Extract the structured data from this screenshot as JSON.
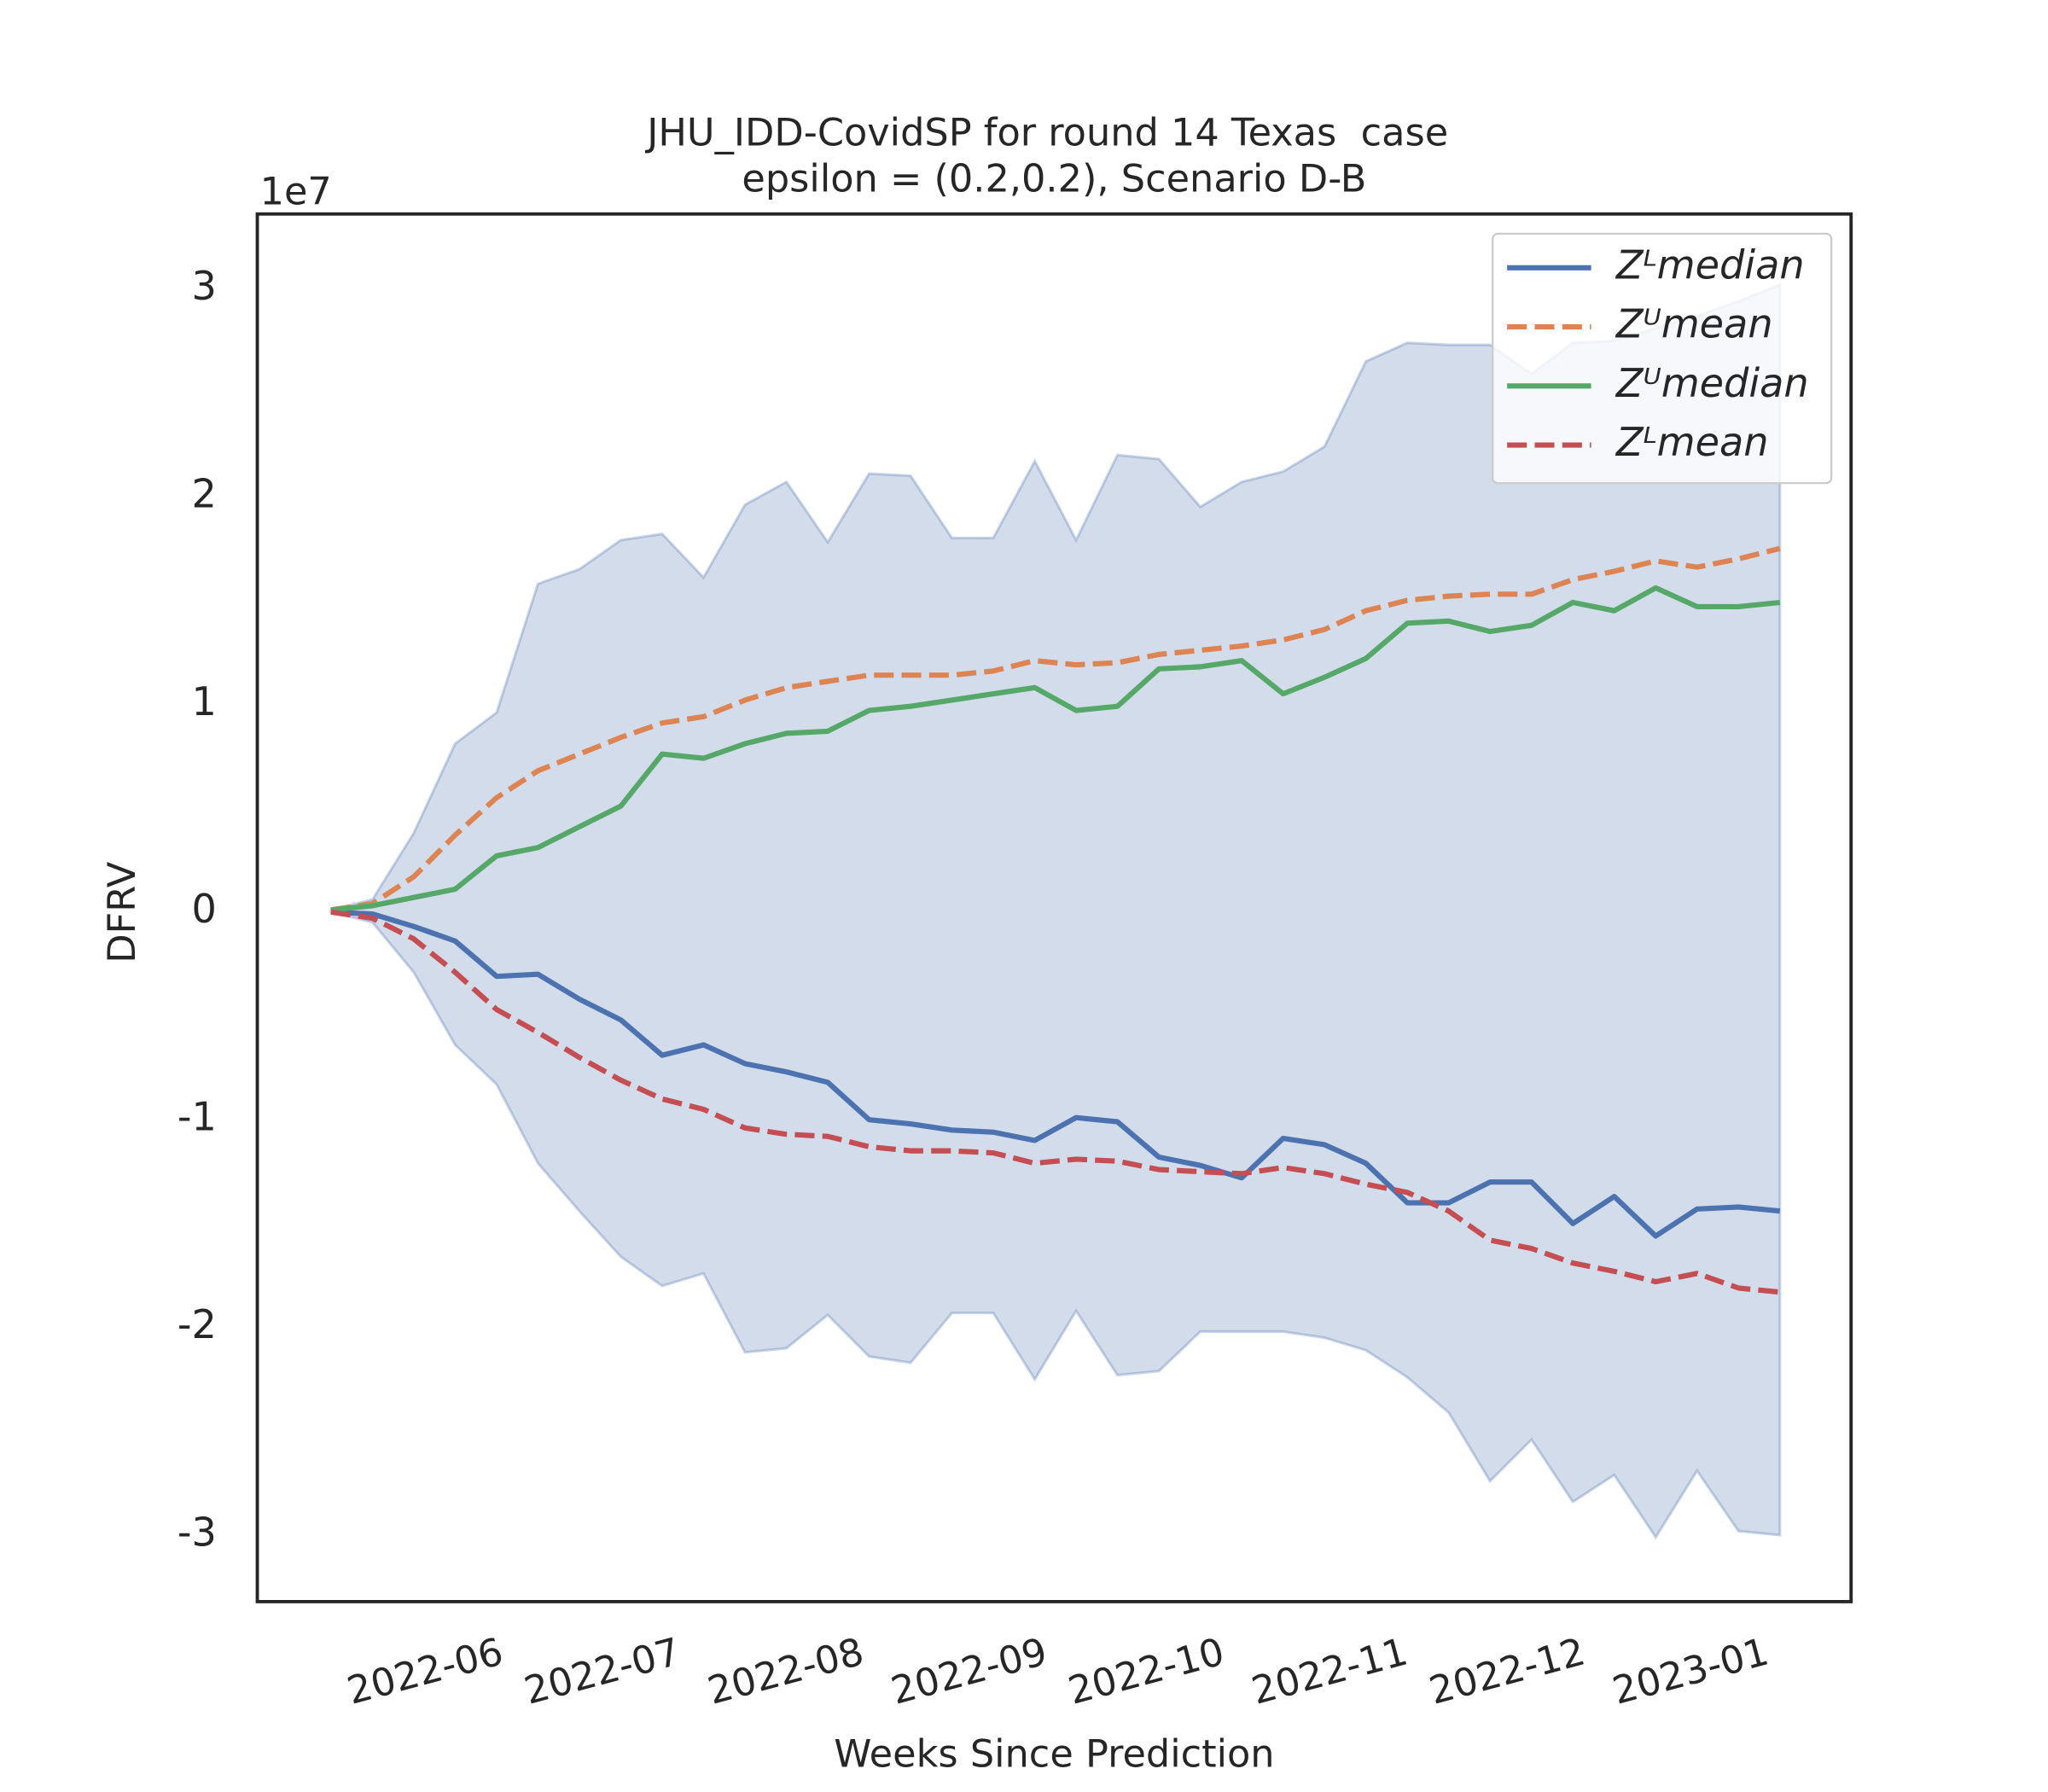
{
  "chart_data": {
    "type": "line",
    "title": [
      "JHU_IDD-CovidSP for round 14 Texas  case",
      "epsilon = (0.2,0.2), Scenario D-B"
    ],
    "xlabel": "Weeks Since Prediction",
    "ylabel": "DFRV",
    "y_offset_label": "1e7",
    "x": [
      0,
      1,
      2,
      3,
      4,
      5,
      6,
      7,
      8,
      9,
      10,
      11,
      12,
      13,
      14,
      15,
      16,
      17,
      18,
      19,
      20,
      21,
      22,
      23,
      24,
      25,
      26,
      27,
      28,
      29,
      30,
      31,
      32,
      33,
      34,
      35
    ],
    "xlim": [
      -1.78,
      36.72
    ],
    "xticks": [
      {
        "value": 2.29,
        "label": "2022-06"
      },
      {
        "value": 6.57,
        "label": "2022-07"
      },
      {
        "value": 11,
        "label": "2022-08"
      },
      {
        "value": 15.43,
        "label": "2022-09"
      },
      {
        "value": 19.71,
        "label": "2022-10"
      },
      {
        "value": 24.14,
        "label": "2022-11"
      },
      {
        "value": 28.43,
        "label": "2022-12"
      },
      {
        "value": 32.86,
        "label": "2023-01"
      }
    ],
    "ylim": [
      -3.32,
      3.36
    ],
    "yticks": [
      -3,
      -2,
      -1,
      0,
      1,
      2,
      3
    ],
    "legend": "upper right",
    "band": {
      "color": "#4c72b0",
      "upper": [
        0.01,
        0.06,
        0.38,
        0.81,
        0.96,
        1.58,
        1.65,
        1.79,
        1.82,
        1.61,
        1.96,
        2.07,
        1.78,
        2.11,
        2.1,
        1.8,
        1.8,
        2.17,
        1.79,
        2.2,
        2.18,
        1.95,
        2.07,
        2.12,
        2.24,
        2.65,
        2.74,
        2.73,
        2.73,
        2.59,
        2.74,
        2.75,
        2.81,
        2.87,
        2.94,
        3.02
      ],
      "lower": [
        0,
        -0.05,
        -0.29,
        -0.64,
        -0.83,
        -1.21,
        -1.44,
        -1.66,
        -1.8,
        -1.74,
        -2.12,
        -2.1,
        -1.94,
        -2.14,
        -2.17,
        -1.93,
        -1.93,
        -2.25,
        -1.92,
        -2.23,
        -2.21,
        -2.02,
        -2.02,
        -2.02,
        -2.05,
        -2.11,
        -2.24,
        -2.41,
        -2.74,
        -2.54,
        -2.84,
        -2.71,
        -3.01,
        -2.69,
        -2.98,
        -3.0
      ]
    },
    "series": [
      {
        "name": "Zᴸmedian",
        "color": "#4c72b0",
        "linestyle": "solid",
        "values": [
          0,
          -0.01,
          -0.07,
          -0.14,
          -0.31,
          -0.3,
          -0.42,
          -0.52,
          -0.69,
          -0.64,
          -0.73,
          -0.77,
          -0.82,
          -1.0,
          -1.02,
          -1.05,
          -1.06,
          -1.1,
          -0.99,
          -1.01,
          -1.18,
          -1.22,
          -1.28,
          -1.09,
          -1.12,
          -1.21,
          -1.4,
          -1.4,
          -1.3,
          -1.3,
          -1.5,
          -1.37,
          -1.56,
          -1.43,
          -1.42,
          -1.44
        ]
      },
      {
        "name": "Zᵁmean",
        "color": "#dd8452",
        "linestyle": "dashed",
        "values": [
          0.01,
          0.04,
          0.17,
          0.37,
          0.55,
          0.68,
          0.76,
          0.84,
          0.91,
          0.94,
          1.02,
          1.08,
          1.11,
          1.14,
          1.14,
          1.14,
          1.16,
          1.21,
          1.19,
          1.2,
          1.24,
          1.26,
          1.28,
          1.31,
          1.36,
          1.45,
          1.5,
          1.52,
          1.53,
          1.53,
          1.6,
          1.64,
          1.69,
          1.66,
          1.7,
          1.75
        ]
      },
      {
        "name": "Zᵁmedian",
        "color": "#55a868",
        "linestyle": "solid",
        "values": [
          0.01,
          0.03,
          0.07,
          0.11,
          0.27,
          0.31,
          0.41,
          0.51,
          0.76,
          0.74,
          0.81,
          0.86,
          0.87,
          0.97,
          0.99,
          1.02,
          1.05,
          1.08,
          0.97,
          0.99,
          1.17,
          1.18,
          1.21,
          1.05,
          1.13,
          1.22,
          1.39,
          1.4,
          1.35,
          1.38,
          1.49,
          1.45,
          1.56,
          1.47,
          1.47,
          1.49
        ]
      },
      {
        "name": "Zᴸmean",
        "color": "#c44e52",
        "linestyle": "dashed",
        "values": [
          0,
          -0.03,
          -0.13,
          -0.29,
          -0.47,
          -0.58,
          -0.7,
          -0.81,
          -0.9,
          -0.95,
          -1.04,
          -1.07,
          -1.08,
          -1.13,
          -1.15,
          -1.15,
          -1.16,
          -1.21,
          -1.19,
          -1.2,
          -1.24,
          -1.25,
          -1.26,
          -1.23,
          -1.26,
          -1.31,
          -1.35,
          -1.44,
          -1.58,
          -1.62,
          -1.69,
          -1.73,
          -1.78,
          -1.74,
          -1.81,
          -1.83
        ]
      }
    ]
  }
}
